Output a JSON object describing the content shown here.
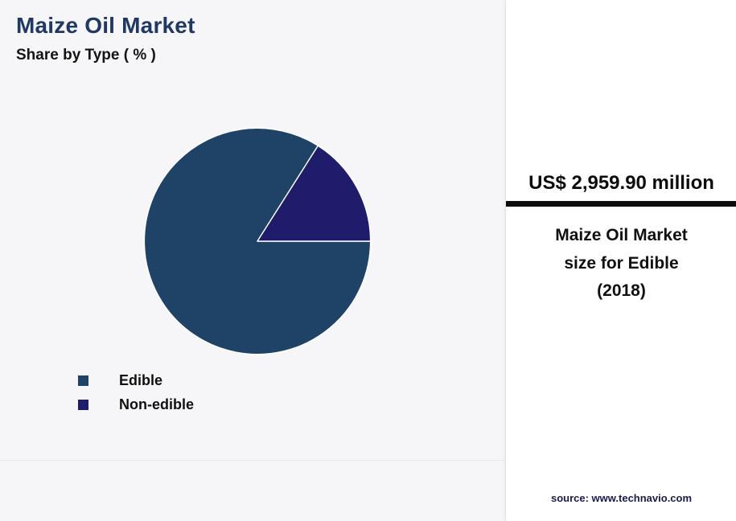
{
  "header": {
    "title": "Maize Oil Market",
    "subtitle": "Share by Type ( % )"
  },
  "chart_data": {
    "type": "pie",
    "title": "Maize Oil Market",
    "subtitle": "Share by Type ( % )",
    "labels": [
      "Edible",
      "Non-edible"
    ],
    "values": [
      84,
      16
    ],
    "colors": [
      "#1F4367",
      "#1F1C6B"
    ],
    "start_angle_deg": 90,
    "slice_border_color": "#ffffff",
    "legend_position": "bottom-left"
  },
  "panel": {
    "value": "US$ 2,959.90 million",
    "caption_lines": [
      "Maize Oil Market",
      "size for Edible",
      "(2018)"
    ],
    "source": "source: www.technavio.com",
    "rule_color": "#0d0d0d"
  }
}
